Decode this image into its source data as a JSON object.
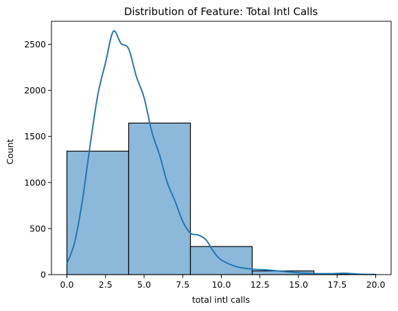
{
  "chart_data": {
    "type": "bar",
    "title": "Distribution of Feature: Total Intl Calls",
    "xlabel": "total intl calls",
    "ylabel": "Count",
    "xlim": [
      -1,
      21
    ],
    "ylim": [
      0,
      2750
    ],
    "x_ticks": [
      0,
      2.5,
      5,
      7.5,
      10,
      12.5,
      15,
      17.5,
      20
    ],
    "x_tick_labels": [
      "0.0",
      "2.5",
      "5.0",
      "7.5",
      "10.0",
      "12.5",
      "15.0",
      "17.5",
      "20.0"
    ],
    "y_ticks": [
      0,
      500,
      1000,
      1500,
      2000,
      2500
    ],
    "y_tick_labels": [
      "0",
      "500",
      "1000",
      "1500",
      "2000",
      "2500"
    ],
    "grid": false,
    "bins": [
      {
        "start": 0,
        "end": 4,
        "count": 1340
      },
      {
        "start": 4,
        "end": 8,
        "count": 1645
      },
      {
        "start": 8,
        "end": 12,
        "count": 305
      },
      {
        "start": 12,
        "end": 16,
        "count": 40
      },
      {
        "start": 16,
        "end": 20,
        "count": 3
      }
    ],
    "kde": {
      "x": [
        0,
        0.5,
        1,
        1.5,
        2,
        2.5,
        3,
        3.5,
        4,
        4.5,
        5,
        5.5,
        6,
        6.5,
        7,
        7.5,
        8,
        8.5,
        9,
        9.5,
        10,
        11,
        12,
        13,
        14,
        15,
        16,
        17,
        18,
        19,
        20
      ],
      "y": [
        120,
        350,
        800,
        1400,
        1950,
        2300,
        2640,
        2510,
        2450,
        2150,
        1920,
        1550,
        1300,
        1000,
        800,
        580,
        450,
        430,
        380,
        250,
        160,
        85,
        60,
        50,
        35,
        20,
        12,
        10,
        15,
        5,
        2
      ]
    },
    "colors": {
      "bar_fill": "#8cb8da",
      "bar_edge": "#000000",
      "kde_line": "#1f77b4"
    }
  }
}
